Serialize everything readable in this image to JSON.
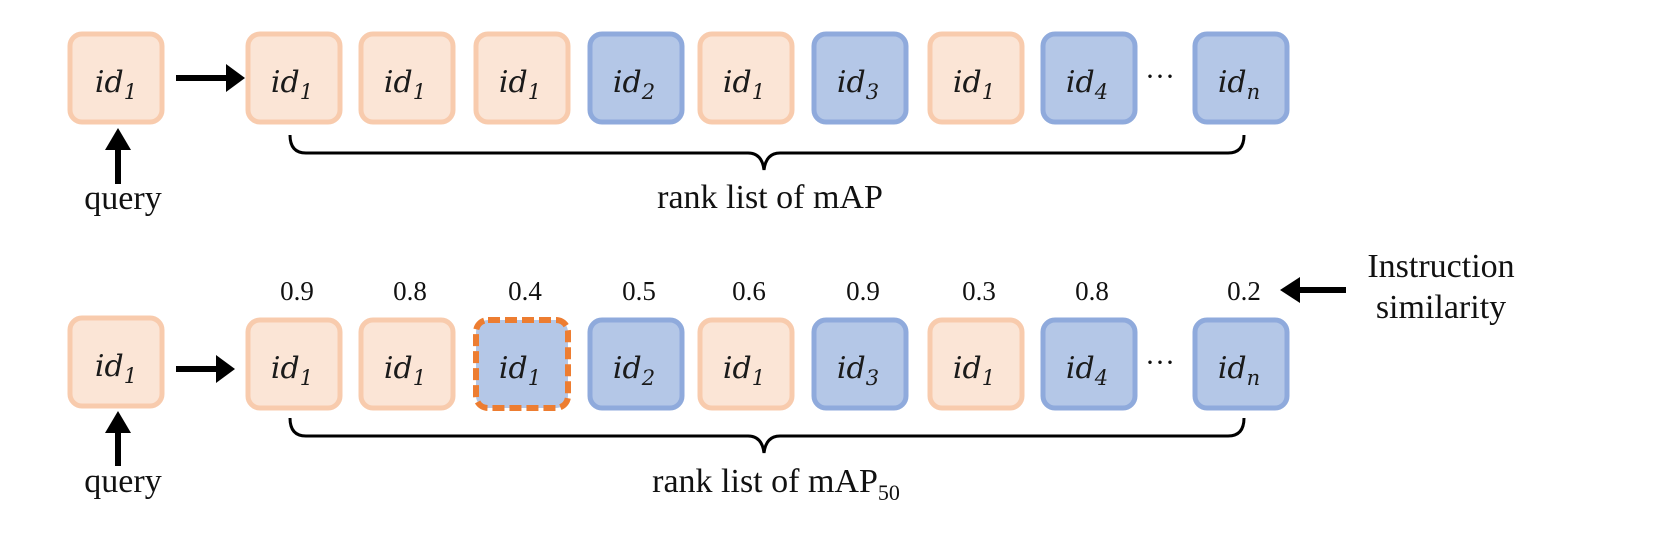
{
  "row1": {
    "query_box": {
      "base": "id",
      "sub": "1",
      "color": "orange"
    },
    "query_label": "query",
    "rank_items": [
      {
        "base": "id",
        "sub": "1",
        "color": "orange"
      },
      {
        "base": "id",
        "sub": "1",
        "color": "orange"
      },
      {
        "base": "id",
        "sub": "1",
        "color": "orange"
      },
      {
        "base": "id",
        "sub": "2",
        "color": "blue"
      },
      {
        "base": "id",
        "sub": "1",
        "color": "orange"
      },
      {
        "base": "id",
        "sub": "3",
        "color": "blue"
      },
      {
        "base": "id",
        "sub": "1",
        "color": "orange"
      },
      {
        "base": "id",
        "sub": "4",
        "color": "blue"
      },
      {
        "base": "id",
        "sub": "n",
        "color": "blue"
      }
    ],
    "ellipsis": "···",
    "rank_label": "rank list of mAP"
  },
  "row2": {
    "query_box": {
      "base": "id",
      "sub": "1",
      "color": "orange"
    },
    "query_label": "query",
    "scores": [
      "0.9",
      "0.8",
      "0.4",
      "0.5",
      "0.6",
      "0.9",
      "0.3",
      "0.8",
      "0.2"
    ],
    "rank_items": [
      {
        "base": "id",
        "sub": "1",
        "color": "orange",
        "highlight": false
      },
      {
        "base": "id",
        "sub": "1",
        "color": "orange",
        "highlight": false
      },
      {
        "base": "id",
        "sub": "1",
        "color": "blue",
        "highlight": true
      },
      {
        "base": "id",
        "sub": "2",
        "color": "blue",
        "highlight": false
      },
      {
        "base": "id",
        "sub": "1",
        "color": "orange",
        "highlight": false
      },
      {
        "base": "id",
        "sub": "3",
        "color": "blue",
        "highlight": false
      },
      {
        "base": "id",
        "sub": "1",
        "color": "orange",
        "highlight": false
      },
      {
        "base": "id",
        "sub": "4",
        "color": "blue",
        "highlight": false
      },
      {
        "base": "id",
        "sub": "n",
        "color": "blue",
        "highlight": false
      }
    ],
    "ellipsis": "···",
    "rank_label": "rank list of mAP",
    "rank_label_sub": "50",
    "similarity_label_line1": "Instruction",
    "similarity_label_line2": "similarity"
  },
  "colors": {
    "orange_fill": "#fbe5d6",
    "orange_stroke": "#f8cbad",
    "blue_fill": "#b4c7e7",
    "blue_stroke": "#8faadc",
    "highlight_stroke": "#ed7d31",
    "arrow": "#000000"
  }
}
